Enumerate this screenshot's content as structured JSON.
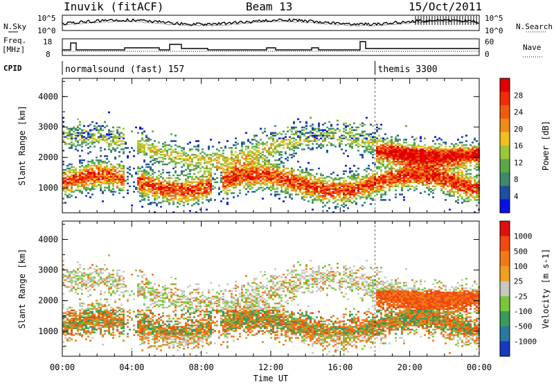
{
  "header": {
    "station": "Inuvik (fitACF)",
    "beam": "Beam 13",
    "date": "15/Oct/2011"
  },
  "noise_panel": {
    "left_label": "N.Sky",
    "left_ticks": [
      "10^5",
      "10^0"
    ],
    "right_label": "N.Search",
    "right_ticks": [
      "10^5",
      "10^0"
    ]
  },
  "freq_panel": {
    "left_label_line1": "Freq.",
    "left_label_line2": "[MHz]",
    "left_ticks": [
      "18",
      "8"
    ],
    "right_label": "Nave",
    "right_ticks": [
      "60",
      "0"
    ]
  },
  "cpid_panel": {
    "label": "CPID",
    "modes": [
      {
        "name": "normalsound (fast) 157",
        "start_hour": 0
      },
      {
        "name": "themis 3300",
        "start_hour": 18
      }
    ]
  },
  "chart_data": [
    {
      "type": "heatmap",
      "title": "",
      "parameter": "Power",
      "ylabel": "Slant Range [km]",
      "xlabel": "",
      "x_range_hours": [
        0,
        24
      ],
      "ylim": [
        180,
        4600
      ],
      "yticks": [
        "1000",
        "2000",
        "3000",
        "4000"
      ],
      "colorbar": {
        "label": "Power [dB]",
        "ticks": [
          "4",
          "8",
          "12",
          "16",
          "20",
          "24",
          "28"
        ],
        "range": [
          0,
          30
        ],
        "colors": [
          "#0b10e6",
          "#1f4fa0",
          "#3c8a6a",
          "#5aa84a",
          "#9ec63a",
          "#f0c020",
          "#f08a18",
          "#f05a10",
          "#f02a0a",
          "#e00000"
        ]
      }
    },
    {
      "type": "heatmap",
      "title": "",
      "parameter": "Velocity",
      "ylabel": "Slant Range [km]",
      "xlabel": "Time UT",
      "x_range_hours": [
        0,
        24
      ],
      "xticks": [
        "00:00",
        "04:00",
        "08:00",
        "12:00",
        "16:00",
        "20:00",
        "00:00"
      ],
      "ylim": [
        180,
        4600
      ],
      "yticks": [
        "1000",
        "2000",
        "3000",
        "4000"
      ],
      "colorbar": {
        "label": "Velocity [m s-1]",
        "ticks": [
          "1000",
          "500",
          "100",
          "25",
          "-25",
          "-100",
          "-500",
          "-1000"
        ],
        "colors": [
          "#1838c0",
          "#2a78a0",
          "#3a9a5a",
          "#7ac83a",
          "#c8c8c0",
          "#f0a020",
          "#f07a18",
          "#f04a10",
          "#e01010"
        ],
        "ground_scatter_color": "#c8c8c0"
      }
    }
  ]
}
